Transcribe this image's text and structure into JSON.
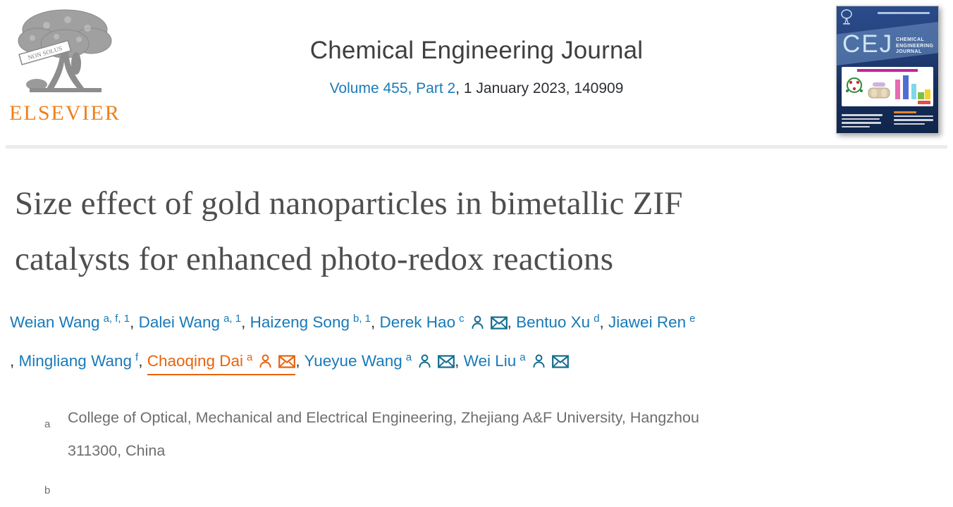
{
  "publisher": {
    "name": "ELSEVIER",
    "tagline": "NON SOLUS",
    "brand_orange": "#ef7f1a"
  },
  "journal": {
    "title": "Chemical Engineering Journal",
    "volume_link": "Volume 455, Part 2",
    "issue_suffix": ", 1 January 2023, 140909",
    "link_blue": "#187ab8"
  },
  "cover": {
    "abbrev": "CEJ",
    "name_lines": [
      "CHEMICAL",
      "ENGINEERING",
      "JOURNAL"
    ]
  },
  "article": {
    "title_lines": [
      "Size effect of gold nanoparticles in bimetallic ZIF",
      "catalysts for enhanced photo-redox reactions"
    ]
  },
  "authors": {
    "highlight_orange": "#e8630c",
    "list": [
      {
        "name": "Weian Wang",
        "sup": "a, f, 1",
        "person": false,
        "mail": false,
        "highlight": false,
        "line": 1
      },
      {
        "name": "Dalei Wang",
        "sup": "a, 1",
        "person": false,
        "mail": false,
        "highlight": false,
        "line": 1
      },
      {
        "name": "Haizeng Song",
        "sup": "b, 1",
        "person": false,
        "mail": false,
        "highlight": false,
        "line": 1
      },
      {
        "name": "Derek Hao",
        "sup": "c",
        "person": true,
        "mail": true,
        "highlight": false,
        "line": 1
      },
      {
        "name": "Bentuo Xu",
        "sup": "d",
        "person": false,
        "mail": false,
        "highlight": false,
        "line": 1
      },
      {
        "name": "Jiawei Ren",
        "sup": "e",
        "person": false,
        "mail": false,
        "highlight": false,
        "line": 1
      },
      {
        "name": "Mingliang Wang",
        "sup": "f",
        "person": false,
        "mail": false,
        "highlight": false,
        "line": 2
      },
      {
        "name": "Chaoqing Dai",
        "sup": "a",
        "person": true,
        "mail": true,
        "highlight": true,
        "line": 2
      },
      {
        "name": "Yueyue Wang",
        "sup": "a",
        "person": true,
        "mail": true,
        "highlight": false,
        "line": 2
      },
      {
        "name": "Wei Liu",
        "sup": "a",
        "person": true,
        "mail": true,
        "highlight": false,
        "line": 2
      }
    ]
  },
  "affiliations": [
    {
      "sup": "a",
      "text": "College of Optical, Mechanical and Electrical Engineering, Zhejiang A&F University, Hangzhou 311300, China"
    },
    {
      "sup": "b",
      "text": ""
    }
  ]
}
